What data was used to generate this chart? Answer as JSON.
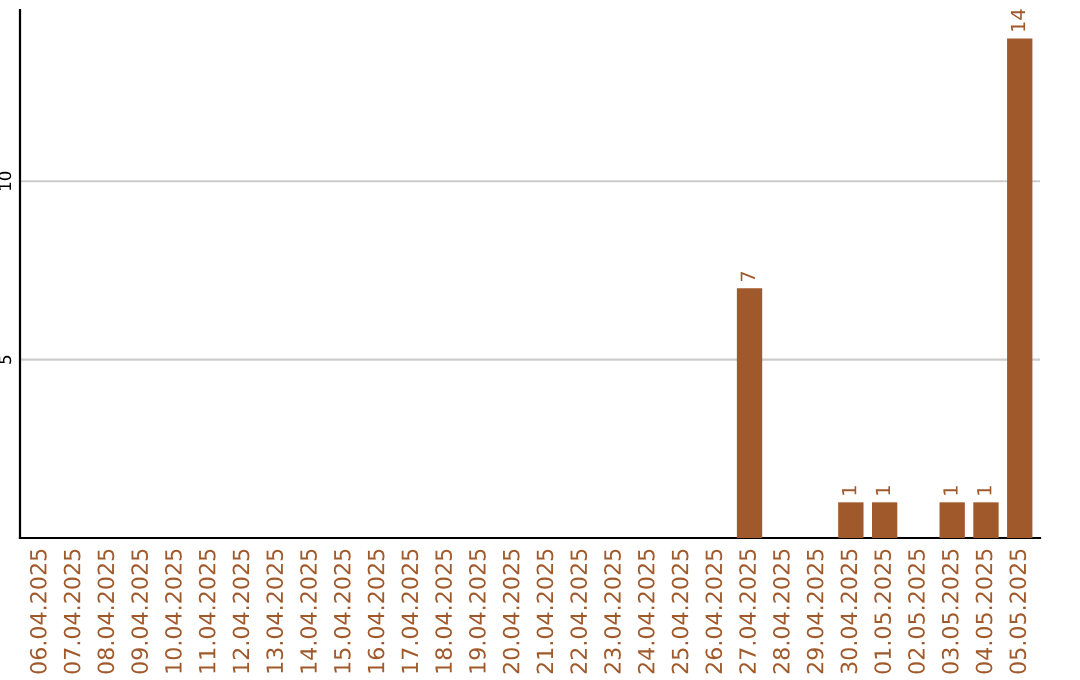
{
  "chart_data": {
    "type": "bar",
    "categories": [
      "06.04.2025",
      "07.04.2025",
      "08.04.2025",
      "09.04.2025",
      "10.04.2025",
      "11.04.2025",
      "12.04.2025",
      "13.04.2025",
      "14.04.2025",
      "15.04.2025",
      "16.04.2025",
      "17.04.2025",
      "18.04.2025",
      "19.04.2025",
      "20.04.2025",
      "21.04.2025",
      "22.04.2025",
      "23.04.2025",
      "24.04.2025",
      "25.04.2025",
      "26.04.2025",
      "27.04.2025",
      "28.04.2025",
      "29.04.2025",
      "30.04.2025",
      "01.05.2025",
      "02.05.2025",
      "03.05.2025",
      "04.05.2025",
      "05.05.2025"
    ],
    "values": [
      0,
      0,
      0,
      0,
      0,
      0,
      0,
      0,
      0,
      0,
      0,
      0,
      0,
      0,
      0,
      0,
      0,
      0,
      0,
      0,
      0,
      7,
      0,
      0,
      1,
      1,
      0,
      1,
      1,
      14
    ],
    "value_labels": [
      null,
      null,
      null,
      null,
      null,
      null,
      null,
      null,
      null,
      null,
      null,
      null,
      null,
      null,
      null,
      null,
      null,
      null,
      null,
      null,
      null,
      "7",
      null,
      null,
      "1",
      "1",
      null,
      "1",
      "1",
      "14"
    ],
    "color": "#a0592b",
    "ylim": [
      0,
      14.8
    ],
    "yticks": [
      5,
      10
    ],
    "grid": "y"
  }
}
